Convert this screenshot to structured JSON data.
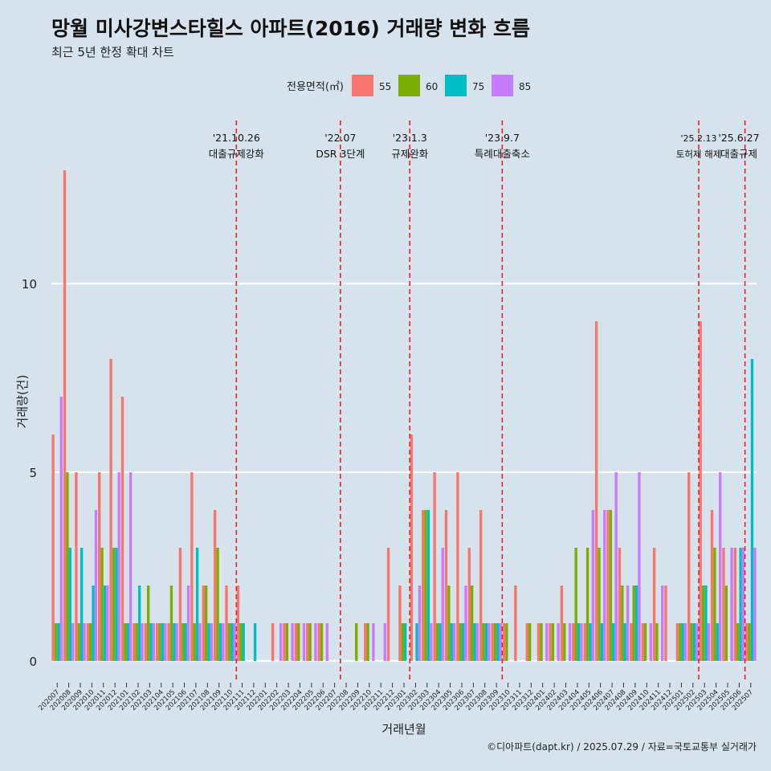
{
  "header": {
    "title": "망월 미사강변스타힐스 아파트(2016) 거래량 변화 흐름",
    "subtitle": "최근 5년 한정 확대 차트"
  },
  "caption": "©디아파트(dapt.kr) / 2025.07.29 / 자료=국토교통부 실거래가",
  "legend": {
    "title": "전용면적(㎡)",
    "items": [
      {
        "label": "55",
        "color": "#f8766d"
      },
      {
        "label": "60",
        "color": "#7cae00"
      },
      {
        "label": "75",
        "color": "#00bfc4"
      },
      {
        "label": "85",
        "color": "#c77cff"
      }
    ]
  },
  "chart_data": {
    "type": "bar",
    "xlabel": "거래년월",
    "ylabel": "거래량(건)",
    "ylim": [
      0,
      14
    ],
    "yticks": [
      0,
      5,
      10
    ],
    "categories": [
      "202007",
      "202008",
      "202009",
      "202010",
      "202011",
      "202012",
      "202101",
      "202102",
      "202103",
      "202104",
      "202105",
      "202106",
      "202107",
      "202108",
      "202109",
      "202110",
      "202111",
      "202112",
      "202201",
      "202202",
      "202203",
      "202204",
      "202205",
      "202206",
      "202207",
      "202208",
      "202209",
      "202210",
      "202211",
      "202212",
      "202301",
      "202302",
      "202303",
      "202304",
      "202305",
      "202306",
      "202307",
      "202308",
      "202309",
      "202310",
      "202311",
      "202312",
      "202401",
      "202402",
      "202403",
      "202404",
      "202405",
      "202406",
      "202407",
      "202408",
      "202409",
      "202410",
      "202411",
      "202412",
      "202501",
      "202502",
      "202503",
      "202504",
      "202505",
      "202506",
      "202507"
    ],
    "series": [
      {
        "name": "55",
        "values": [
          6,
          13,
          5,
          1,
          5,
          8,
          7,
          1,
          1,
          1,
          1,
          3,
          5,
          2,
          4,
          2,
          2,
          0,
          0,
          1,
          1,
          1,
          1,
          1,
          0,
          0,
          0,
          1,
          0,
          3,
          2,
          6,
          4,
          5,
          4,
          5,
          3,
          4,
          1,
          1,
          2,
          1,
          1,
          1,
          2,
          1,
          1,
          9,
          4,
          3,
          1,
          1,
          3,
          2,
          1,
          5,
          9,
          4,
          3,
          3,
          1
        ]
      },
      {
        "name": "60",
        "values": [
          1,
          5,
          1,
          1,
          3,
          3,
          1,
          1,
          2,
          1,
          2,
          1,
          1,
          2,
          3,
          1,
          1,
          0,
          0,
          0,
          1,
          1,
          1,
          1,
          0,
          0,
          1,
          1,
          0,
          0,
          1,
          0,
          4,
          1,
          2,
          1,
          2,
          1,
          1,
          1,
          0,
          1,
          1,
          1,
          1,
          3,
          3,
          3,
          4,
          2,
          2,
          1,
          1,
          0,
          1,
          1,
          2,
          3,
          2,
          1,
          1
        ]
      },
      {
        "name": "75",
        "values": [
          1,
          3,
          3,
          2,
          2,
          3,
          1,
          2,
          1,
          1,
          1,
          1,
          3,
          1,
          1,
          1,
          1,
          1,
          0,
          0,
          0,
          0,
          0,
          0,
          0,
          0,
          0,
          0,
          0,
          0,
          1,
          1,
          4,
          1,
          1,
          1,
          1,
          1,
          1,
          0,
          0,
          0,
          0,
          0,
          0,
          1,
          1,
          1,
          1,
          1,
          2,
          0,
          0,
          0,
          1,
          1,
          2,
          1,
          0,
          3,
          8
        ]
      },
      {
        "name": "85",
        "values": [
          7,
          1,
          1,
          4,
          2,
          5,
          5,
          1,
          1,
          1,
          1,
          2,
          1,
          1,
          1,
          1,
          0,
          0,
          0,
          1,
          1,
          1,
          1,
          1,
          0,
          0,
          0,
          1,
          1,
          0,
          0,
          2,
          1,
          3,
          1,
          2,
          1,
          1,
          1,
          0,
          0,
          0,
          1,
          1,
          1,
          1,
          4,
          4,
          5,
          2,
          5,
          1,
          2,
          0,
          1,
          1,
          1,
          5,
          3,
          3,
          3
        ]
      }
    ],
    "events": [
      {
        "after": "202110",
        "date": "'21.10.26",
        "label": "대출규제강화"
      },
      {
        "after": "202207",
        "date": "'22.07",
        "label": "DSR 3단계"
      },
      {
        "after": "202301",
        "date": "'23.1.3",
        "label": "규제완화"
      },
      {
        "after": "202309",
        "date": "'23.9.7",
        "label": "특례대출축소"
      },
      {
        "after": "202502",
        "date": "'25.2.13",
        "label": "토허제 해제"
      },
      {
        "after": "202506",
        "date": "'25.6.27",
        "label": "대출규제"
      }
    ]
  }
}
